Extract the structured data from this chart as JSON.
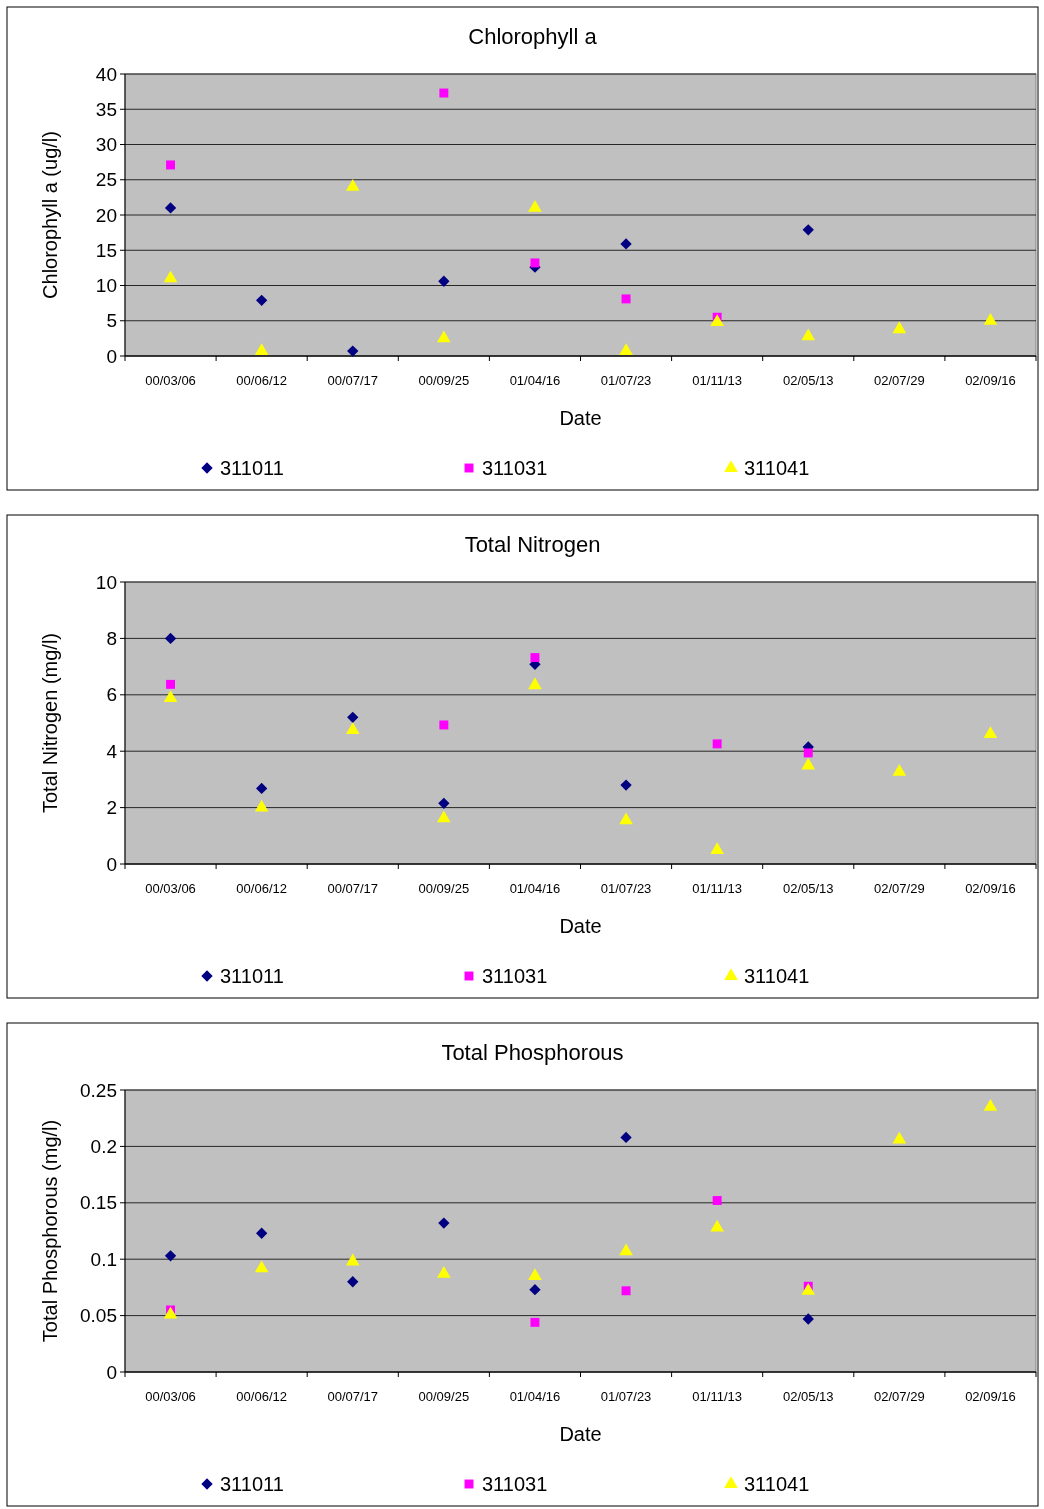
{
  "chart_data": [
    {
      "type": "scatter",
      "title": "Chlorophyll a",
      "xlabel": "Date",
      "ylabel": "Chlorophyll a  (ug/l)",
      "categories": [
        "00/03/06",
        "00/06/12",
        "00/07/17",
        "00/09/25",
        "01/04/16",
        "01/07/23",
        "01/11/13",
        "02/05/13",
        "02/07/29",
        "02/09/16"
      ],
      "ylim": [
        0,
        40
      ],
      "yticks": [
        0,
        5,
        10,
        15,
        20,
        25,
        30,
        35,
        40
      ],
      "grid": "y",
      "legend": "bottom",
      "series": [
        {
          "name": "311011",
          "color": "#000080",
          "marker": "diamond",
          "values": [
            21,
            7.9,
            0.7,
            10.6,
            12.6,
            15.9,
            null,
            17.9,
            null,
            null
          ]
        },
        {
          "name": "311031",
          "color": "#ff00ff",
          "marker": "square",
          "values": [
            27.1,
            null,
            null,
            37.3,
            13.2,
            8.1,
            5.5,
            null,
            null,
            null
          ]
        },
        {
          "name": "311041",
          "color": "#ffff00",
          "marker": "triangle",
          "values": [
            11,
            0.7,
            24,
            2.5,
            21,
            0.7,
            4.8,
            2.8,
            3.8,
            5
          ]
        }
      ]
    },
    {
      "type": "scatter",
      "title": "Total Nitrogen",
      "xlabel": "Date",
      "ylabel": "Total Nitrogen (mg/l)",
      "categories": [
        "00/03/06",
        "00/06/12",
        "00/07/17",
        "00/09/25",
        "01/04/16",
        "01/07/23",
        "01/11/13",
        "02/05/13",
        "02/07/29",
        "02/09/16"
      ],
      "ylim": [
        0,
        10
      ],
      "yticks": [
        0,
        2,
        4,
        6,
        8,
        10
      ],
      "grid": "y",
      "legend": "bottom",
      "series": [
        {
          "name": "311011",
          "color": "#000080",
          "marker": "diamond",
          "values": [
            8,
            2.68,
            5.2,
            2.15,
            7.08,
            2.8,
            null,
            4.15,
            null,
            null
          ]
        },
        {
          "name": "311031",
          "color": "#ff00ff",
          "marker": "square",
          "values": [
            6.37,
            null,
            null,
            4.93,
            7.32,
            null,
            4.26,
            3.94,
            null,
            null
          ]
        },
        {
          "name": "311041",
          "color": "#ffff00",
          "marker": "triangle",
          "values": [
            5.88,
            2,
            4.75,
            1.62,
            6.34,
            1.55,
            0.49,
            3.49,
            3.27,
            4.61
          ]
        }
      ]
    },
    {
      "type": "scatter",
      "title": "Total Phosphorous",
      "xlabel": "Date",
      "ylabel": "Total Phosphorous (mg/l)",
      "categories": [
        "00/03/06",
        "00/06/12",
        "00/07/17",
        "00/09/25",
        "01/04/16",
        "01/07/23",
        "01/11/13",
        "02/05/13",
        "02/07/29",
        "02/09/16"
      ],
      "ylim": [
        0,
        0.25
      ],
      "yticks": [
        0,
        0.05,
        0.1,
        0.15,
        0.2,
        0.25
      ],
      "grid": "y",
      "legend": "bottom",
      "series": [
        {
          "name": "311011",
          "color": "#000080",
          "marker": "diamond",
          "values": [
            0.103,
            0.123,
            0.08,
            0.132,
            0.073,
            0.208,
            null,
            0.047,
            null,
            null
          ]
        },
        {
          "name": "311031",
          "color": "#ff00ff",
          "marker": "square",
          "values": [
            0.055,
            null,
            null,
            null,
            0.044,
            0.072,
            0.152,
            0.076,
            null,
            null
          ]
        },
        {
          "name": "311041",
          "color": "#ffff00",
          "marker": "triangle",
          "values": [
            0.051,
            0.092,
            0.098,
            0.087,
            0.085,
            0.107,
            0.128,
            0.072,
            0.206,
            0.235
          ]
        }
      ]
    }
  ]
}
